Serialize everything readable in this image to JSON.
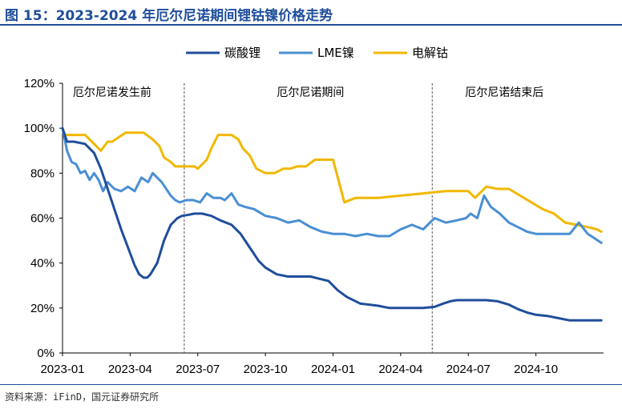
{
  "figure": {
    "title": "图 15：2023-2024 年厄尔尼诺期间锂钴镍价格走势",
    "source": "资料来源：iFinD，国元证券研究所"
  },
  "chart_data": {
    "type": "line",
    "title": "",
    "xlabel": "",
    "ylabel": "",
    "ylim": [
      0,
      120
    ],
    "y_ticks": [
      "0%",
      "20%",
      "40%",
      "60%",
      "80%",
      "100%",
      "120%"
    ],
    "x_ticks": [
      "2023-01",
      "2023-04",
      "2023-07",
      "2023-10",
      "2024-01",
      "2024-04",
      "2024-07",
      "2024-10"
    ],
    "x_domain_months": [
      0,
      24
    ],
    "grid": false,
    "legend_position": "top-center",
    "period_labels": [
      "厄尔尼诺发生前",
      "厄尔尼诺期间",
      "厄尔尼诺结束后"
    ],
    "period_dividers": [
      "2023-06",
      "2024-05"
    ],
    "series": [
      {
        "name": "碳酸锂",
        "color": "#1f4e9b",
        "x": [
          0,
          0.2,
          0.5,
          1.0,
          1.4,
          1.7,
          2.0,
          2.3,
          2.6,
          2.9,
          3.2,
          3.4,
          3.6,
          3.75,
          3.9,
          4.2,
          4.5,
          4.8,
          5.1,
          5.3,
          5.6,
          5.85,
          6.2,
          6.6,
          7.0,
          7.5,
          7.9,
          8.3,
          8.7,
          9.0,
          9.5,
          10.0,
          10.5,
          11.0,
          11.4,
          11.8,
          12.2,
          12.6,
          13.2,
          14.0,
          14.5,
          15.0,
          15.5,
          16.0,
          16.5,
          16.9,
          17.2,
          17.5,
          17.8,
          18.3,
          18.8,
          19.3,
          19.8,
          20.2,
          20.6,
          21.0,
          21.5,
          22.0,
          22.5,
          23.0,
          23.5,
          23.9
        ],
        "values": [
          100,
          94,
          94,
          93,
          89,
          82,
          73,
          64,
          55,
          47,
          39,
          35,
          33.5,
          33.5,
          35,
          40,
          50,
          57,
          60,
          61,
          61.5,
          62,
          62,
          61,
          59,
          57,
          53,
          47,
          41,
          38,
          35,
          34,
          34,
          34,
          33,
          32,
          28,
          25,
          22,
          21,
          20,
          20,
          20,
          20,
          20.5,
          22,
          23,
          23.5,
          23.5,
          23.5,
          23.5,
          23,
          21.5,
          19.5,
          18,
          17,
          16.5,
          15.5,
          14.5,
          14.5,
          14.5,
          14.5
        ]
      },
      {
        "name": "LME镍",
        "color": "#4a8fd3",
        "x": [
          0,
          0.2,
          0.4,
          0.6,
          0.8,
          1.0,
          1.2,
          1.4,
          1.6,
          1.8,
          2.0,
          2.3,
          2.6,
          2.9,
          3.2,
          3.5,
          3.8,
          4.0,
          4.2,
          4.4,
          4.6,
          4.8,
          5.0,
          5.2,
          5.5,
          5.8,
          6.1,
          6.4,
          6.7,
          7.0,
          7.2,
          7.5,
          7.8,
          8.1,
          8.5,
          9.0,
          9.5,
          10.0,
          10.5,
          11.0,
          11.5,
          12.0,
          12.5,
          13.0,
          13.5,
          14.0,
          14.5,
          15.0,
          15.5,
          16.0,
          16.5,
          17.0,
          17.5,
          17.9,
          18.1,
          18.4,
          18.7,
          19.0,
          19.4,
          19.8,
          20.2,
          20.6,
          21.0,
          21.5,
          22.0,
          22.5,
          22.9,
          23.3,
          23.6,
          23.9
        ],
        "values": [
          100,
          90,
          85,
          84,
          80,
          81,
          77,
          80,
          77,
          72,
          76,
          73,
          72,
          74,
          72,
          78,
          76,
          80,
          78,
          76,
          73,
          70,
          68,
          67,
          68,
          68,
          67,
          71,
          69,
          69,
          68,
          71,
          66,
          65,
          64,
          61,
          60,
          58,
          59,
          56,
          54,
          53,
          53,
          52,
          53,
          52,
          52,
          55,
          57,
          55,
          60,
          58,
          59,
          60,
          62,
          60,
          70,
          65,
          62,
          58,
          56,
          54,
          53,
          53,
          53,
          53,
          58,
          53,
          51,
          49
        ]
      },
      {
        "name": "电解钴",
        "color": "#f0b800",
        "x": [
          0,
          0.1,
          0.3,
          0.6,
          1.0,
          1.4,
          1.7,
          2.0,
          2.2,
          2.5,
          2.8,
          3.2,
          3.6,
          4.0,
          4.3,
          4.5,
          4.8,
          5.0,
          5.5,
          5.85,
          6.0,
          6.4,
          6.6,
          6.9,
          7.2,
          7.5,
          7.8,
          8.0,
          8.3,
          8.6,
          9.0,
          9.4,
          9.8,
          10.1,
          10.4,
          10.8,
          11.2,
          11.6,
          12.0,
          12.5,
          13.0,
          14.0,
          15.0,
          16.0,
          17.0,
          17.5,
          18.0,
          18.3,
          18.8,
          19.3,
          19.8,
          20.3,
          20.8,
          21.3,
          21.8,
          22.3,
          22.8,
          23.3,
          23.7,
          23.9
        ],
        "values": [
          100,
          97,
          97,
          97,
          97,
          93,
          90,
          94,
          94,
          96,
          98,
          98,
          98,
          95,
          92,
          87,
          85,
          83,
          83,
          83,
          82,
          86,
          91,
          97,
          97,
          97,
          95,
          91,
          88,
          82,
          80,
          80,
          82,
          82,
          83,
          83,
          86,
          86,
          86,
          67,
          69,
          69,
          70,
          71,
          72,
          72,
          72,
          69,
          74,
          73,
          73,
          70,
          67,
          64,
          62,
          58,
          57,
          56,
          55,
          54
        ]
      }
    ]
  }
}
